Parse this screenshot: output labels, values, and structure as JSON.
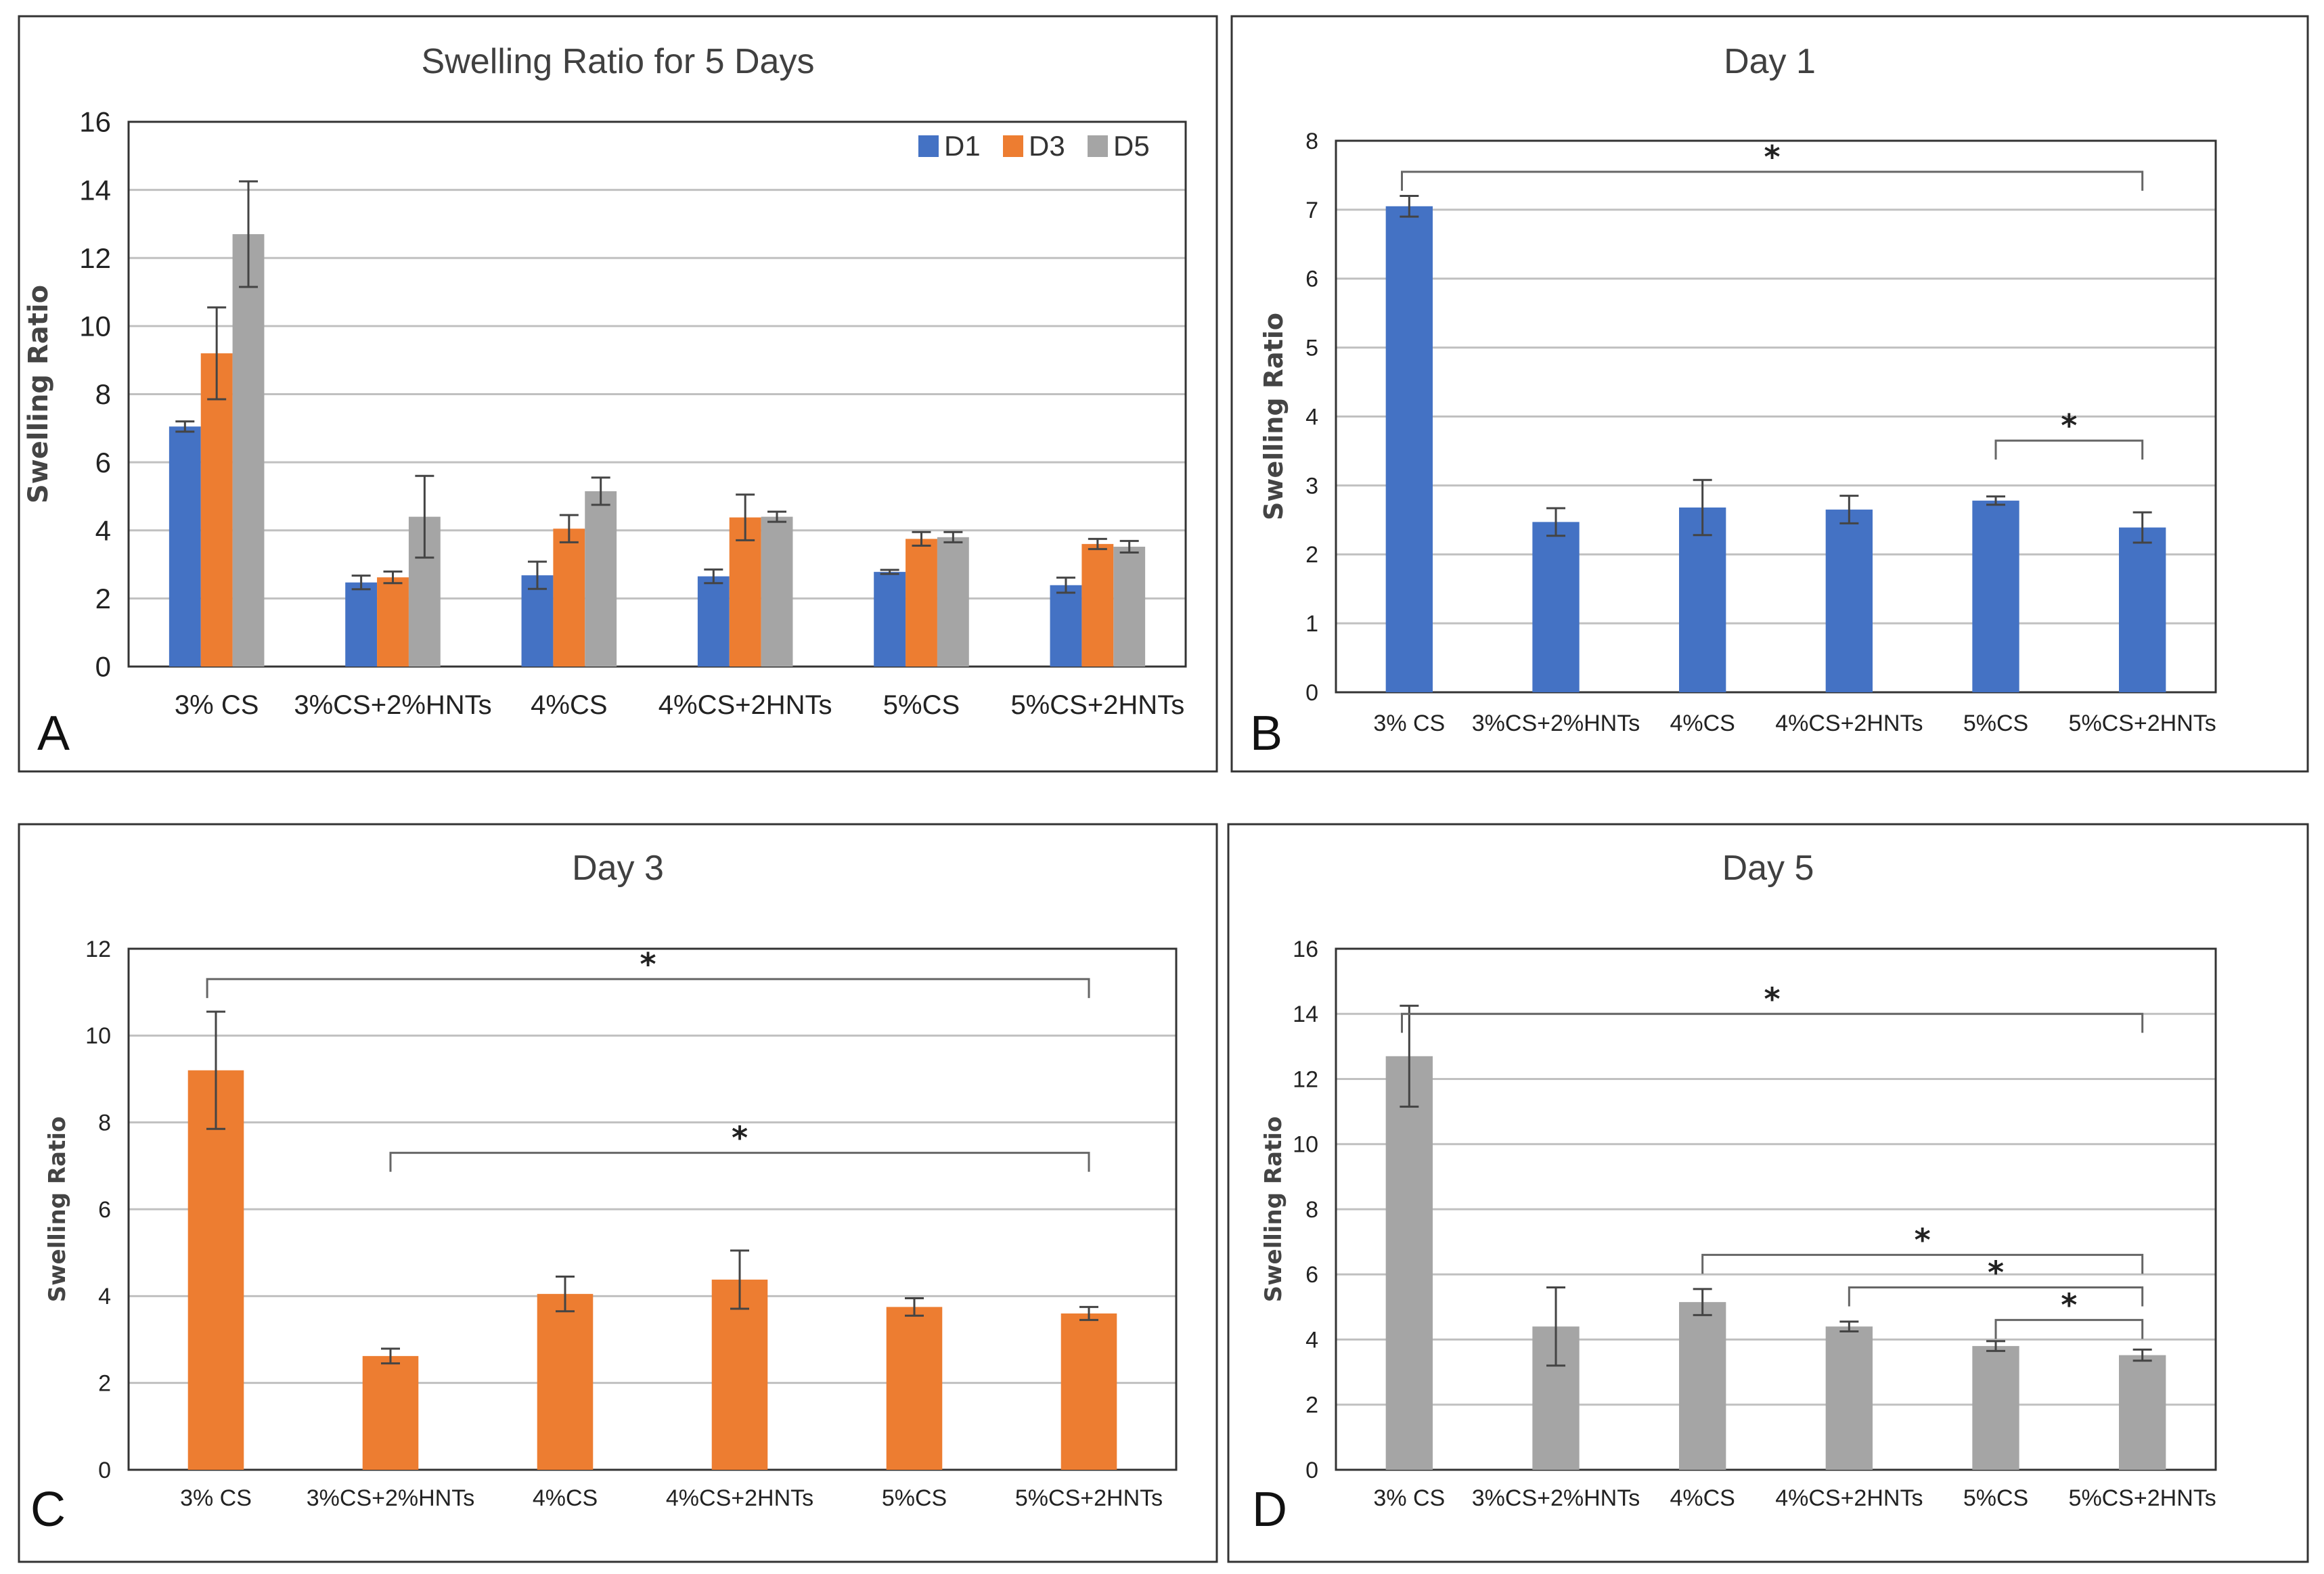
{
  "chart_data": [
    {
      "panel": "A",
      "type": "bar",
      "title": "Swelling Ratio for 5 Days",
      "ylabel": "Swelling Ratio",
      "xlabel": "",
      "ylim": [
        0,
        16
      ],
      "yticks": [
        0,
        2,
        4,
        6,
        8,
        10,
        12,
        14,
        16
      ],
      "categories": [
        "3% CS",
        "3%CS+2%HNTs",
        "4%CS",
        "4%CS+2HNTs",
        "5%CS",
        "5%CS+2HNTs"
      ],
      "series": [
        {
          "name": "D1",
          "color": "#4472C4",
          "values": [
            7.05,
            2.47,
            2.68,
            2.65,
            2.78,
            2.39
          ],
          "errors": [
            0.15,
            0.2,
            0.4,
            0.2,
            0.06,
            0.22
          ]
        },
        {
          "name": "D3",
          "color": "#ED7D31",
          "values": [
            9.2,
            2.62,
            4.05,
            4.38,
            3.75,
            3.6
          ],
          "errors": [
            1.35,
            0.17,
            0.4,
            0.67,
            0.2,
            0.15
          ]
        },
        {
          "name": "D5",
          "color": "#A5A5A5",
          "values": [
            12.7,
            4.4,
            5.15,
            4.4,
            3.8,
            3.52
          ],
          "errors": [
            1.55,
            1.2,
            0.4,
            0.15,
            0.15,
            0.17
          ]
        }
      ],
      "legend": "top-right"
    },
    {
      "panel": "B",
      "type": "bar",
      "title": "Day 1",
      "ylabel": "Swelling Ratio",
      "xlabel": "",
      "ylim": [
        0,
        8
      ],
      "yticks": [
        0,
        1,
        2,
        3,
        4,
        5,
        6,
        7,
        8
      ],
      "categories": [
        "3% CS",
        "3%CS+2%HNTs",
        "4%CS",
        "4%CS+2HNTs",
        "5%CS",
        "5%CS+2HNTs"
      ],
      "series": [
        {
          "name": "D1",
          "color": "#4472C4",
          "values": [
            7.05,
            2.47,
            2.68,
            2.65,
            2.78,
            2.39
          ],
          "errors": [
            0.15,
            0.2,
            0.4,
            0.2,
            0.06,
            0.22
          ]
        }
      ],
      "significance": [
        {
          "from": 0,
          "to": 5,
          "level": 7.55,
          "label": "*"
        },
        {
          "from": 4,
          "to": 5,
          "level": 3.65,
          "label": "*"
        }
      ]
    },
    {
      "panel": "C",
      "type": "bar",
      "title": "Day 3",
      "ylabel": "Swelling Ratio",
      "xlabel": "",
      "ylim": [
        0,
        12
      ],
      "yticks": [
        0,
        2,
        4,
        6,
        8,
        10,
        12
      ],
      "categories": [
        "3% CS",
        "3%CS+2%HNTs",
        "4%CS",
        "4%CS+2HNTs",
        "5%CS",
        "5%CS+2HNTs"
      ],
      "series": [
        {
          "name": "D3",
          "color": "#ED7D31",
          "values": [
            9.2,
            2.62,
            4.05,
            4.38,
            3.75,
            3.6
          ],
          "errors": [
            1.35,
            0.17,
            0.4,
            0.67,
            0.2,
            0.15
          ]
        }
      ],
      "significance": [
        {
          "from": 0,
          "to": 5,
          "level": 11.3,
          "label": "*"
        },
        {
          "from": 1,
          "to": 5,
          "level": 7.3,
          "label": "*"
        }
      ]
    },
    {
      "panel": "D",
      "type": "bar",
      "title": "Day 5",
      "ylabel": "Swelling Ratio",
      "xlabel": "",
      "ylim": [
        0,
        16
      ],
      "yticks": [
        0,
        2,
        4,
        6,
        8,
        10,
        12,
        14,
        16
      ],
      "categories": [
        "3% CS",
        "3%CS+2%HNTs",
        "4%CS",
        "4%CS+2HNTs",
        "5%CS",
        "5%CS+2HNTs"
      ],
      "series": [
        {
          "name": "D5",
          "color": "#A5A5A5",
          "values": [
            12.7,
            4.4,
            5.15,
            4.4,
            3.8,
            3.52
          ],
          "errors": [
            1.55,
            1.2,
            0.4,
            0.15,
            0.15,
            0.17
          ]
        }
      ],
      "significance": [
        {
          "from": 0,
          "to": 5,
          "level": 14.0,
          "label": "*"
        },
        {
          "from": 2,
          "to": 5,
          "level": 6.6,
          "label": "*"
        },
        {
          "from": 3,
          "to": 5,
          "level": 5.6,
          "label": "*"
        },
        {
          "from": 4,
          "to": 5,
          "level": 4.6,
          "label": "*"
        }
      ]
    }
  ]
}
